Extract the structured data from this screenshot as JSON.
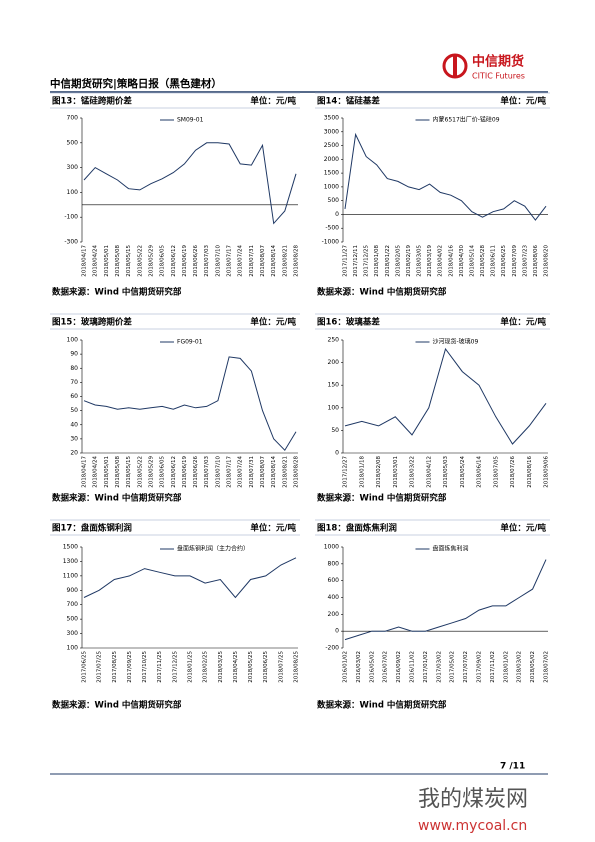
{
  "header": {
    "logo_cn": "中信期货",
    "logo_en": "CITIC Futures",
    "title": "中信期货研究|策略日报（黑色建材）"
  },
  "chart_data": [
    {
      "type": "line",
      "title": "图13：锰硅跨期价差",
      "unit": "单位：元/吨",
      "source": "数据来源：Wind  中信期货研究部",
      "categories": [
        "2018/04/17",
        "2018/04/24",
        "2018/05/01",
        "2018/05/08",
        "2018/05/15",
        "2018/05/22",
        "2018/05/29",
        "2018/06/05",
        "2018/06/12",
        "2018/06/19",
        "2018/06/26",
        "2018/07/03",
        "2018/07/10",
        "2018/07/17",
        "2018/07/24",
        "2018/07/31",
        "2018/08/07",
        "2018/08/14",
        "2018/08/21",
        "2018/08/28"
      ],
      "series": [
        {
          "name": "SM09-01",
          "color": "#1f3864",
          "values": [
            200,
            300,
            250,
            200,
            130,
            120,
            170,
            210,
            260,
            330,
            440,
            500,
            500,
            490,
            330,
            320,
            480,
            -150,
            -50,
            250
          ]
        }
      ],
      "ylim": [
        -300,
        700
      ],
      "yticks": [
        -300,
        -100,
        100,
        300,
        500,
        700
      ]
    },
    {
      "type": "line",
      "title": "图14：锰硅基差",
      "unit": "单位：元/吨",
      "source": "数据来源：Wind  中信期货研究部",
      "categories": [
        "2017/11/27",
        "2017/12/11",
        "2017/12/25",
        "2018/01/08",
        "2018/01/22",
        "2018/02/05",
        "2018/02/19",
        "2018/03/05",
        "2018/03/19",
        "2018/04/02",
        "2018/04/16",
        "2018/04/30",
        "2018/05/14",
        "2018/05/28",
        "2018/06/11",
        "2018/06/25",
        "2018/07/09",
        "2018/07/23",
        "2018/08/06",
        "2018/08/20"
      ],
      "series": [
        {
          "name": "内蒙6517出厂价-锰硅09",
          "color": "#1f3864",
          "values": [
            200,
            2900,
            2100,
            1800,
            1300,
            1200,
            1000,
            900,
            1100,
            800,
            700,
            500,
            100,
            -100,
            100,
            200,
            500,
            300,
            -200,
            300
          ]
        }
      ],
      "ylim": [
        -1000,
        3500
      ],
      "yticks": [
        -1000,
        -500,
        0,
        500,
        1000,
        1500,
        2000,
        2500,
        3000,
        3500
      ]
    },
    {
      "type": "line",
      "title": "图15：玻璃跨期价差",
      "unit": "单位：元/吨",
      "source": "数据来源：Wind  中信期货研究部",
      "categories": [
        "2018/04/17",
        "2018/04/24",
        "2018/05/01",
        "2018/05/08",
        "2018/05/15",
        "2018/05/22",
        "2018/05/29",
        "2018/06/05",
        "2018/06/12",
        "2018/06/19",
        "2018/06/26",
        "2018/07/03",
        "2018/07/10",
        "2018/07/17",
        "2018/07/24",
        "2018/07/31",
        "2018/08/07",
        "2018/08/14",
        "2018/08/21",
        "2018/08/28"
      ],
      "series": [
        {
          "name": "FG09-01",
          "color": "#1f3864",
          "values": [
            57,
            54,
            53,
            51,
            52,
            51,
            52,
            53,
            51,
            54,
            52,
            53,
            57,
            88,
            87,
            78,
            50,
            30,
            22,
            35
          ]
        }
      ],
      "ylim": [
        20,
        100
      ],
      "yticks": [
        20,
        30,
        40,
        50,
        60,
        70,
        80,
        90,
        100
      ]
    },
    {
      "type": "line",
      "title": "图16：玻璃基差",
      "unit": "单位：元/吨",
      "source": "数据来源：Wind  中信期货研究部",
      "categories": [
        "2017/12/27",
        "2018/01/18",
        "2018/02/08",
        "2018/03/01",
        "2018/03/22",
        "2018/04/12",
        "2018/05/03",
        "2018/05/24",
        "2018/06/14",
        "2018/07/05",
        "2018/07/26",
        "2018/08/16",
        "2018/09/06"
      ],
      "series": [
        {
          "name": "沙河现货-玻璃09",
          "color": "#1f3864",
          "values": [
            60,
            70,
            60,
            80,
            40,
            100,
            230,
            180,
            150,
            80,
            20,
            60,
            110
          ]
        }
      ],
      "ylim": [
        0,
        250
      ],
      "yticks": [
        0,
        50,
        100,
        150,
        200,
        250
      ]
    },
    {
      "type": "line",
      "title": "图17：盘面炼钢利润",
      "unit": "单位：元/吨",
      "source": "数据来源：Wind  中信期货研究部",
      "categories": [
        "2017/06/25",
        "2017/07/25",
        "2017/08/25",
        "2017/09/25",
        "2017/10/25",
        "2017/11/25",
        "2017/12/25",
        "2018/01/25",
        "2018/02/25",
        "2018/03/25",
        "2018/04/25",
        "2018/05/25",
        "2018/06/25",
        "2018/07/25",
        "2018/08/25"
      ],
      "series": [
        {
          "name": "盘面炼钢利润（主力合约）",
          "color": "#1f3864",
          "values": [
            800,
            900,
            1050,
            1100,
            1200,
            1150,
            1100,
            1100,
            1000,
            1050,
            800,
            1050,
            1100,
            1250,
            1350
          ]
        }
      ],
      "ylim": [
        100,
        1500
      ],
      "yticks": [
        100,
        300,
        500,
        700,
        900,
        1100,
        1300,
        1500
      ]
    },
    {
      "type": "line",
      "title": "图18：盘面炼焦利润",
      "unit": "单位：元/吨",
      "source": "数据来源：Wind  中信期货研究部",
      "categories": [
        "2016/01/02",
        "2016/03/02",
        "2016/05/02",
        "2016/07/02",
        "2016/09/02",
        "2016/11/02",
        "2017/01/02",
        "2017/03/02",
        "2017/05/02",
        "2017/07/02",
        "2017/09/02",
        "2017/11/02",
        "2018/01/02",
        "2018/03/02",
        "2018/05/02",
        "2018/07/02"
      ],
      "series": [
        {
          "name": "盘面炼焦利润",
          "color": "#1f3864",
          "values": [
            -100,
            -50,
            0,
            0,
            50,
            0,
            0,
            50,
            100,
            150,
            250,
            300,
            300,
            400,
            500,
            850
          ]
        }
      ],
      "ylim": [
        -200,
        1000
      ],
      "yticks": [
        -200,
        0,
        200,
        400,
        600,
        800,
        1000
      ]
    }
  ],
  "footer": {
    "page": "7 /11"
  },
  "watermark": {
    "cn": "我的煤炭网",
    "url": "www.mycoal.cn"
  }
}
